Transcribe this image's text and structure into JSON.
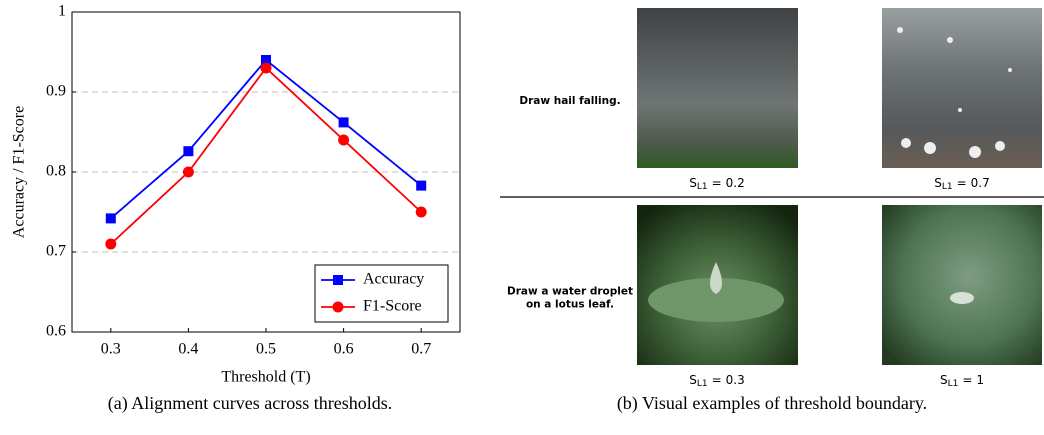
{
  "chart_data": {
    "type": "line",
    "x_label": "Threshold (T)",
    "y_label": "Accuracy / F1-Score",
    "x": [
      0.3,
      0.4,
      0.5,
      0.6,
      0.7
    ],
    "series": [
      {
        "name": "Accuracy",
        "color": "#0000ff",
        "marker": "square",
        "values": [
          0.742,
          0.826,
          0.94,
          0.862,
          0.783
        ]
      },
      {
        "name": "F1-Score",
        "color": "#ff0000",
        "marker": "circle",
        "values": [
          0.71,
          0.8,
          0.93,
          0.84,
          0.75
        ]
      }
    ],
    "xlim": [
      0.25,
      0.75
    ],
    "ylim": [
      0.6,
      1
    ],
    "xticks": [
      0.3,
      0.4,
      0.5,
      0.6,
      0.7
    ],
    "yticks": [
      0.6,
      0.7,
      0.8,
      0.9,
      1
    ],
    "grid": true,
    "legend": "lower right",
    "caption": "(a) Alignment curves across thresholds."
  },
  "examples": {
    "caption": "(b) Visual examples of threshold boundary.",
    "score_symbol": "S",
    "score_subscript": "L1",
    "score_relation": "=",
    "rows": [
      {
        "prompt_lines": [
          "Draw hail falling."
        ],
        "scores": [
          0.2,
          0.7
        ]
      },
      {
        "prompt_lines": [
          "Draw a water droplet",
          "on a lotus leaf."
        ],
        "scores": [
          0.3,
          1.0
        ]
      }
    ]
  }
}
